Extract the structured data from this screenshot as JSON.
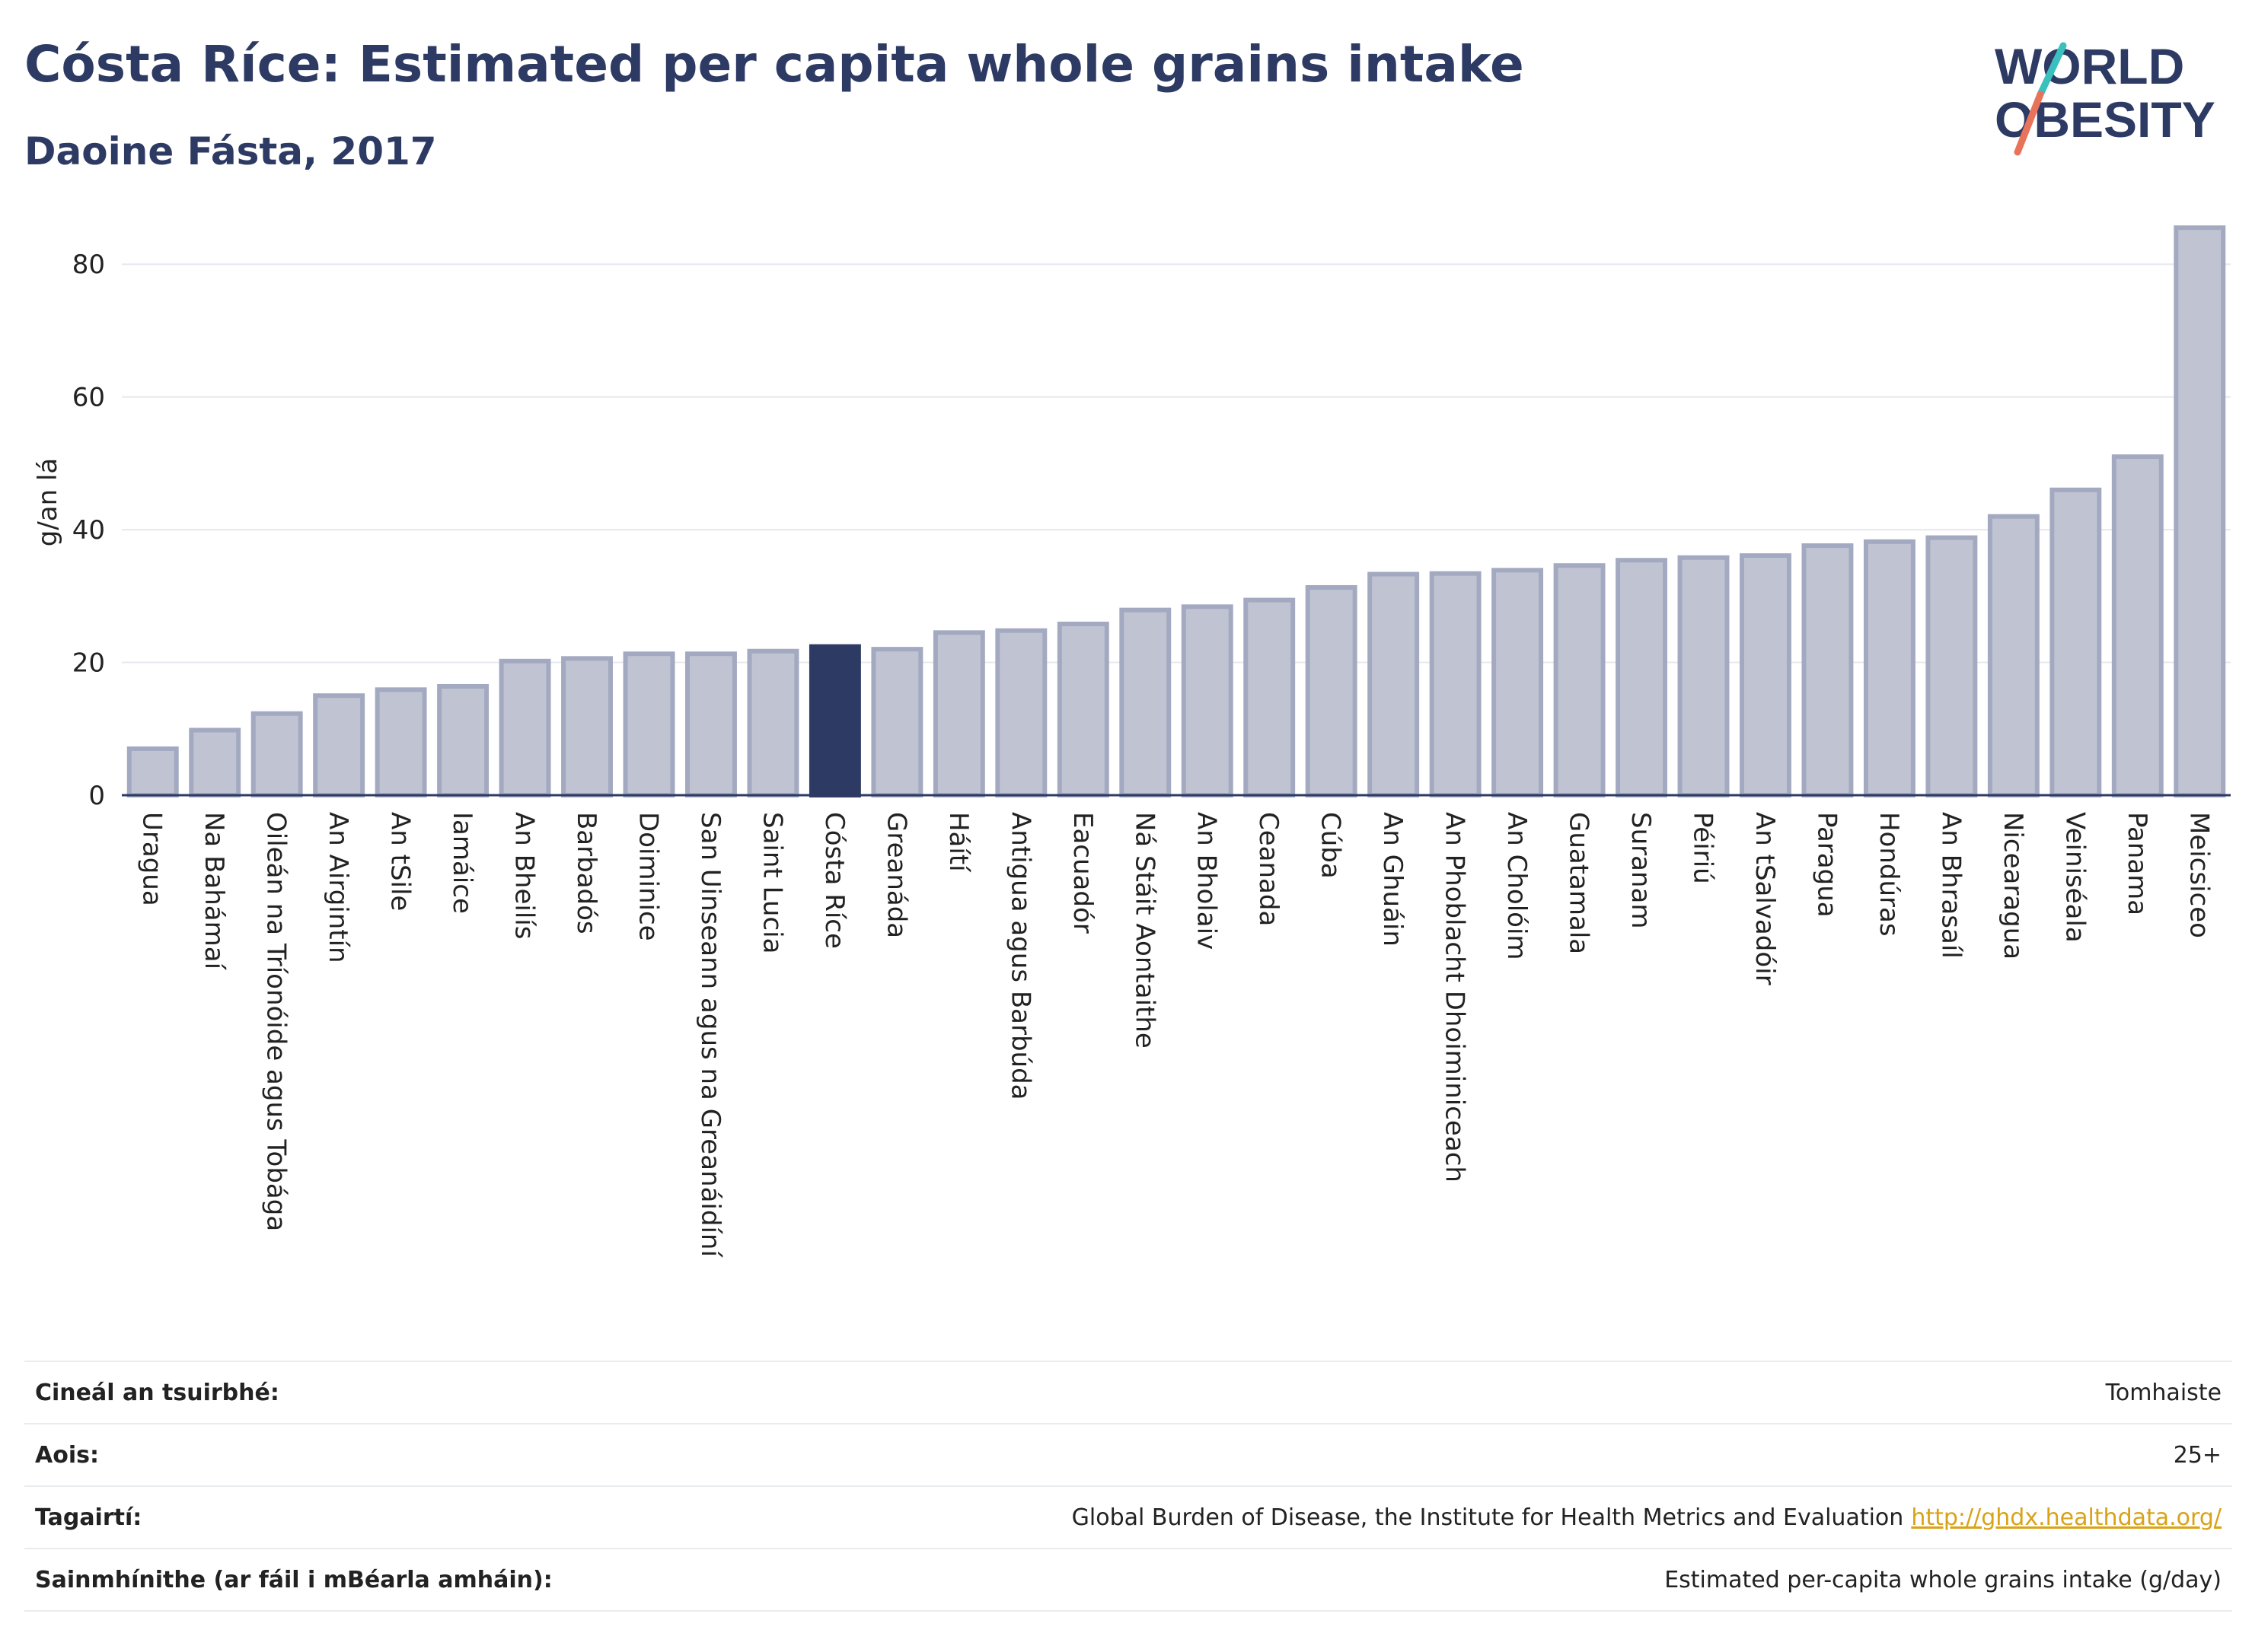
{
  "header": {
    "title": "Cósta Ríce: Estimated per capita whole grains intake",
    "subtitle": "Daoine Fásta, 2017"
  },
  "logo": {
    "line1": "WORLD",
    "line2": "OBESITY",
    "accent_colors": [
      "#3bbfbf",
      "#e8735a"
    ]
  },
  "chart_data": {
    "type": "bar",
    "ylabel": "g/an lá",
    "ylim": [
      0,
      90
    ],
    "yticks": [
      0,
      20,
      40,
      60,
      80
    ],
    "grid": true,
    "highlight": "Cósta Ríce",
    "colors": {
      "bar": "#c0c4d2",
      "bar_border": "#a3a9c0",
      "highlight": "#2d3a63"
    },
    "categories": [
      "Uragua",
      "Na Bahámaí",
      "Oileán na Tríonóide agus Tobága",
      "An Airgintín",
      "An tSile",
      "Iamáice",
      "An Bheilís",
      "Barbadós",
      "Doiminice",
      "San Uinseann agus na Greanáidíní",
      "Saint Lucia",
      "Cósta Ríce",
      "Greanáda",
      "Háítí",
      "Antigua agus Barbúda",
      "Eacuadór",
      "Ná Stáit Aontaithe",
      "An Bholaiv",
      "Ceanada",
      "Cúba",
      "An Ghuáin",
      "An Phoblacht Dhoiminiceach",
      "An Cholóim",
      "Guatamala",
      "Suranam",
      "Péiriú",
      "An tSalvadóir",
      "Paragua",
      "Hondúras",
      "An Bhrasaíl",
      "Nicearagua",
      "Veiniséala",
      "Panama",
      "Meicsiceo"
    ],
    "values": [
      7.0,
      9.8,
      12.3,
      15.0,
      15.9,
      16.4,
      20.2,
      20.6,
      21.3,
      21.3,
      21.7,
      22.4,
      22.0,
      24.5,
      24.8,
      25.8,
      27.9,
      28.4,
      29.4,
      31.3,
      33.3,
      33.4,
      33.9,
      34.6,
      35.4,
      35.8,
      36.1,
      37.6,
      38.2,
      38.8,
      42.0,
      46.0,
      51.0,
      85.5
    ]
  },
  "info": {
    "rows": [
      {
        "label": "Cineál an tsuirbhé:",
        "value": "Tomhaiste"
      },
      {
        "label": "Aois:",
        "value": "25+"
      },
      {
        "label": "Tagairtí:",
        "value": "Global Burden of Disease, the Institute for Health Metrics and Evaluation",
        "link": "http://ghdx.healthdata.org/"
      },
      {
        "label": "Sainmhínithe (ar fáil i mBéarla amháin):",
        "value": "Estimated per-capita whole grains intake (g/day)"
      }
    ]
  }
}
